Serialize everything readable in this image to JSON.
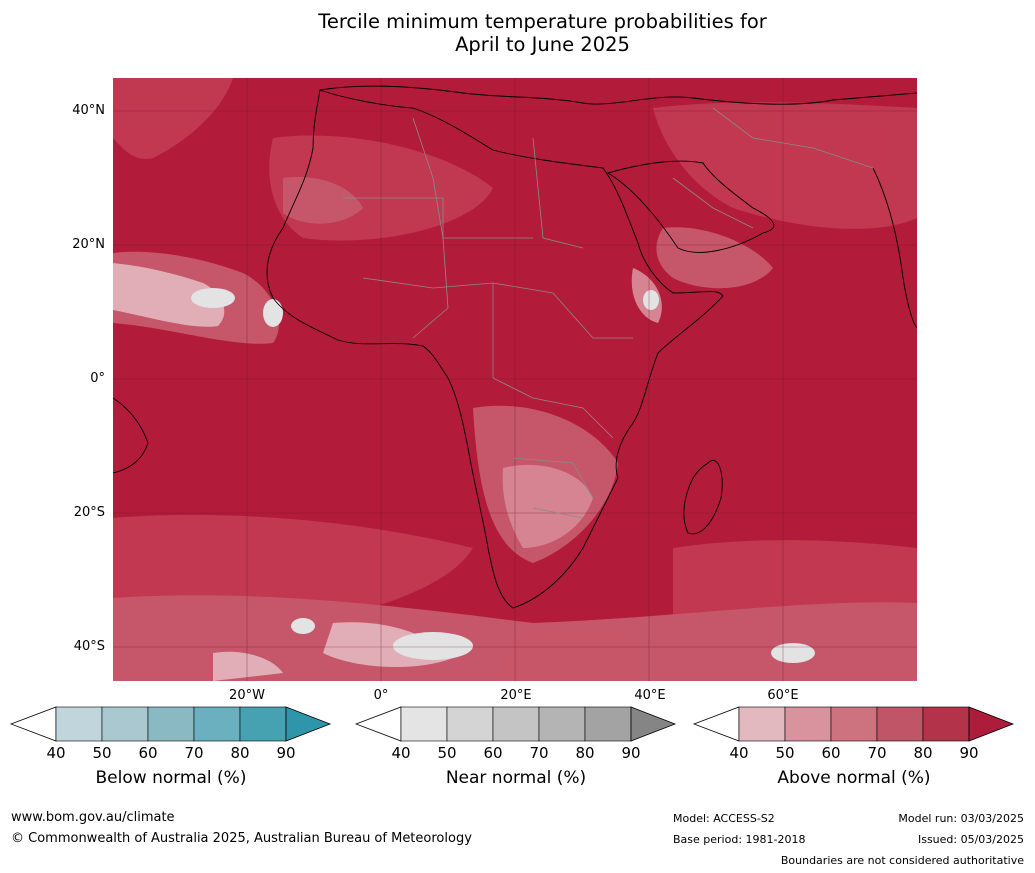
{
  "title": {
    "line1": "Tercile minimum temperature probabilities for",
    "line2": "April to June 2025"
  },
  "map": {
    "latitude_labels": [
      "40°N",
      "20°N",
      "0°",
      "20°S",
      "40°S"
    ],
    "longitude_labels": [
      "20°W",
      "0°",
      "20°E",
      "40°E",
      "60°E"
    ],
    "colors": {
      "ocean_dominant": "#b31b3b",
      "above_80": "#c23a52",
      "above_70": "#c85a6c",
      "above_60": "#d88a96",
      "above_50": "#e4b6be",
      "near_normal_light": "#e3e3e3",
      "coastline": "#000000",
      "border": "#8a8a8a"
    }
  },
  "colorbars": [
    {
      "title": "Below normal (%)",
      "ticks": [
        "40",
        "50",
        "60",
        "70",
        "80",
        "90"
      ],
      "colors": [
        "#c0d6dc",
        "#a9c8cf",
        "#8ab9c4",
        "#6bb0bf",
        "#46a1b1"
      ],
      "extend_color": "#2f95aa"
    },
    {
      "title": "Near normal (%)",
      "ticks": [
        "40",
        "50",
        "60",
        "70",
        "80",
        "90"
      ],
      "colors": [
        "#e4e4e4",
        "#d4d4d4",
        "#c4c4c4",
        "#b4b4b4",
        "#a3a3a3"
      ],
      "extend_color": "#858585"
    },
    {
      "title": "Above normal (%)",
      "ticks": [
        "40",
        "50",
        "60",
        "70",
        "80",
        "90"
      ],
      "colors": [
        "#e3b9c0",
        "#d8939e",
        "#cc737f",
        "#bf5567",
        "#b3334b"
      ],
      "extend_color": "#ad1c3a"
    }
  ],
  "footer": {
    "website": "www.bom.gov.au/climate",
    "copyright": "© Commonwealth of Australia 2025, Australian Bureau of Meteorology",
    "model": "Model: ACCESS-S2",
    "base_period": "Base period: 1981-2018",
    "model_run": "Model run: 03/03/2025",
    "issued": "Issued: 05/03/2025",
    "disclaimer": "Boundaries are not considered authoritative"
  }
}
